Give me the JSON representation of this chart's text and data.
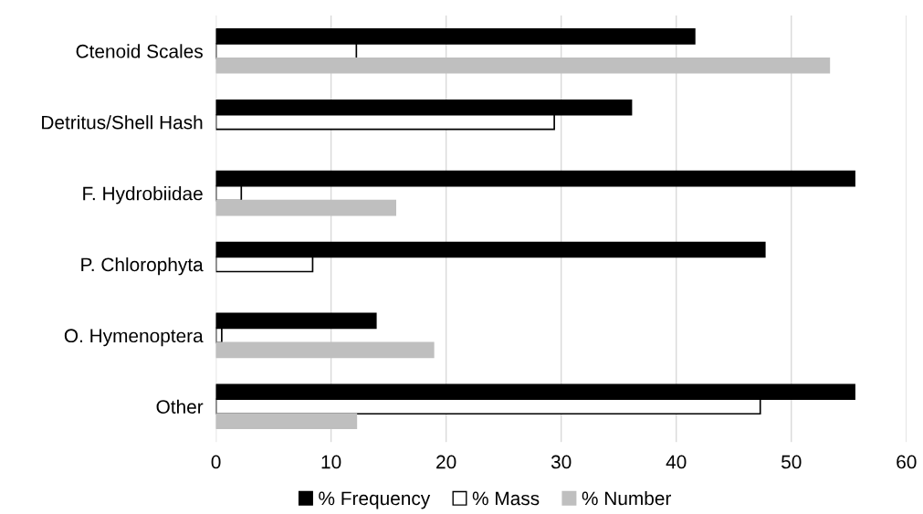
{
  "chart_data": {
    "type": "bar",
    "orientation": "horizontal",
    "categories": [
      "Ctenoid Scales",
      "Detritus/Shell Hash",
      "F. Hydrobiidae",
      "P. Chlorophyta",
      "O. Hymenoptera",
      "Other"
    ],
    "series": [
      {
        "name": "% Frequency",
        "color": "#000000",
        "values": [
          41.6,
          36.1,
          55.5,
          47.7,
          13.9,
          55.5
        ]
      },
      {
        "name": "% Mass",
        "color": "#ffffff",
        "values": [
          12.2,
          29.4,
          2.2,
          8.4,
          0.5,
          47.3
        ]
      },
      {
        "name": "% Number",
        "color": "#bfbfbf",
        "values": [
          53.3,
          null,
          15.6,
          null,
          18.9,
          12.2
        ]
      }
    ],
    "xlim": [
      0,
      60
    ],
    "xticks": [
      0,
      10,
      20,
      30,
      40,
      50,
      60
    ],
    "grid": "x",
    "legend": "bottom"
  }
}
